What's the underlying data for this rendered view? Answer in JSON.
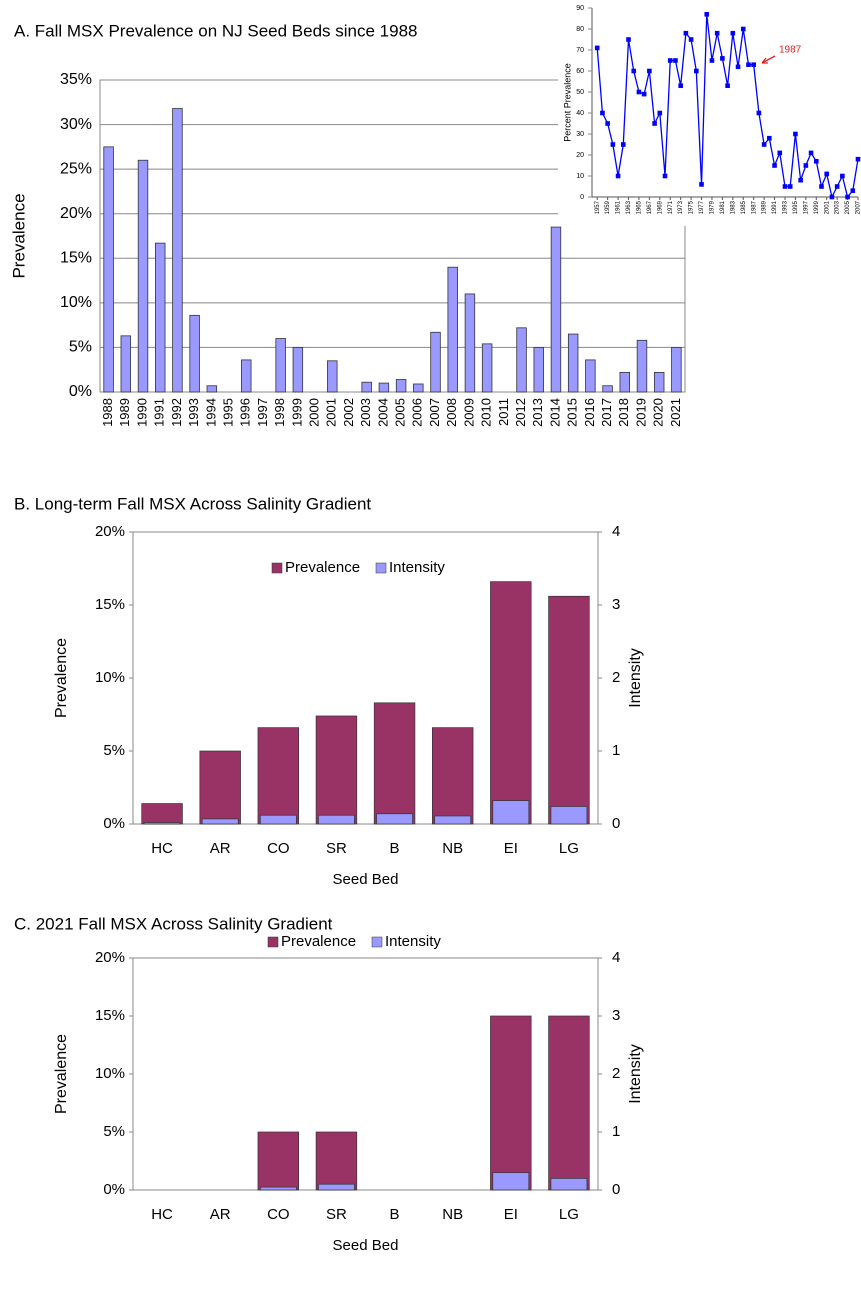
{
  "chart_data": [
    {
      "type": "bar",
      "title": "A. Fall MSX Prevalence on NJ Seed Beds since 1988",
      "ylabel": "Prevalence",
      "categories": [
        "1988",
        "1989",
        "1990",
        "1991",
        "1992",
        "1993",
        "1994",
        "1995",
        "1996",
        "1997",
        "1998",
        "1999",
        "2000",
        "2001",
        "2002",
        "2003",
        "2004",
        "2005",
        "2006",
        "2007",
        "2008",
        "2009",
        "2010",
        "2011",
        "2012",
        "2013",
        "2014",
        "2015",
        "2016",
        "2017",
        "2018",
        "2019",
        "2020",
        "2021"
      ],
      "values": [
        27.5,
        6.3,
        26,
        16.7,
        31.8,
        8.6,
        0.7,
        0,
        3.6,
        0,
        6,
        5,
        0,
        3.5,
        0,
        1.1,
        1,
        1.4,
        0.9,
        6.7,
        14,
        11,
        5.4,
        0,
        7.2,
        5,
        18.5,
        6.5,
        3.6,
        0.7,
        2.2,
        5.8,
        2.2,
        5
      ],
      "color": "#9999ff",
      "grid": true,
      "ylim": [
        0,
        35
      ],
      "yticks": [
        {
          "value": 0,
          "label": "0%"
        },
        {
          "value": 5,
          "label": "5%"
        },
        {
          "value": 10,
          "label": "10%"
        },
        {
          "value": 15,
          "label": "15%"
        },
        {
          "value": 20,
          "label": "20%"
        },
        {
          "value": 25,
          "label": "25%"
        },
        {
          "value": 30,
          "label": "30%"
        },
        {
          "value": 35,
          "label": "35%"
        }
      ]
    },
    {
      "type": "line",
      "ylabel": "Percent Prevalence",
      "annotation": "1987",
      "color": "#0000ff",
      "x": [
        1957,
        1958,
        1959,
        1960,
        1961,
        1962,
        1963,
        1964,
        1965,
        1966,
        1967,
        1968,
        1969,
        1970,
        1971,
        1972,
        1973,
        1974,
        1975,
        1976,
        1977,
        1978,
        1979,
        1980,
        1981,
        1982,
        1983,
        1984,
        1985,
        1986,
        1987,
        1988,
        1989,
        1990,
        1991,
        1992,
        1993,
        1994,
        1995,
        1996,
        1997,
        1998,
        1999,
        2000,
        2001,
        2002,
        2003,
        2004,
        2005,
        2006,
        2007
      ],
      "values": [
        71,
        40,
        35,
        25,
        10,
        25,
        75,
        60,
        50,
        49,
        60,
        35,
        40,
        10,
        65,
        65,
        53,
        78,
        75,
        60,
        6,
        87,
        65,
        78,
        66,
        53,
        78,
        62,
        80,
        63,
        63,
        40,
        25,
        28,
        15,
        21,
        5,
        5,
        30,
        8,
        15,
        21,
        17,
        5,
        11,
        0,
        5,
        10,
        0,
        3,
        18
      ],
      "xlim": [
        1956,
        2007
      ],
      "ylim": [
        0,
        90
      ],
      "xticks": [
        1957,
        1959,
        1961,
        1963,
        1965,
        1967,
        1969,
        1971,
        1973,
        1975,
        1977,
        1979,
        1981,
        1983,
        1985,
        1987,
        1989,
        1991,
        1993,
        1995,
        1997,
        1999,
        2001,
        2003,
        2005,
        2007
      ],
      "yticks": [
        0,
        10,
        20,
        30,
        40,
        50,
        60,
        70,
        80,
        90
      ]
    },
    {
      "type": "grouped-bar",
      "title": "B. Long-term Fall MSX Across Salinity Gradient",
      "xlabel": "Seed Bed",
      "ylabel": "Prevalence",
      "y2label": "Intensity",
      "categories": [
        "HC",
        "AR",
        "CO",
        "SR",
        "B",
        "NB",
        "EI",
        "LG"
      ],
      "series": [
        {
          "name": "Prevalence",
          "color": "#993366",
          "values": [
            1.4,
            5,
            6.6,
            7.4,
            8.3,
            6.6,
            16.6,
            15.6
          ]
        },
        {
          "name": "Intensity",
          "color": "#9999ff",
          "axis": "y2",
          "values": [
            0.02,
            0.07,
            0.12,
            0.12,
            0.14,
            0.11,
            0.32,
            0.24
          ]
        }
      ],
      "ylim": [
        0,
        20
      ],
      "yticks": [
        {
          "value": 0,
          "label": "0%"
        },
        {
          "value": 5,
          "label": "5%"
        },
        {
          "value": 10,
          "label": "10%"
        },
        {
          "value": 15,
          "label": "15%"
        },
        {
          "value": 20,
          "label": "20%"
        }
      ],
      "y2lim": [
        0,
        4
      ],
      "y2ticks": [
        0,
        1,
        2,
        3,
        4
      ]
    },
    {
      "type": "grouped-bar",
      "title": "C. 2021 Fall MSX Across Salinity Gradient",
      "xlabel": "Seed Bed",
      "ylabel": "Prevalence",
      "y2label": "Intensity",
      "categories": [
        "HC",
        "AR",
        "CO",
        "SR",
        "B",
        "NB",
        "EI",
        "LG"
      ],
      "series": [
        {
          "name": "Prevalence",
          "color": "#993366",
          "values": [
            0,
            0,
            5,
            5,
            0,
            0,
            15,
            15
          ]
        },
        {
          "name": "Intensity",
          "color": "#9999ff",
          "axis": "y2",
          "values": [
            0,
            0,
            0.05,
            0.1,
            0,
            0,
            0.3,
            0.2
          ]
        }
      ],
      "ylim": [
        0,
        20
      ],
      "yticks": [
        {
          "value": 0,
          "label": "0%"
        },
        {
          "value": 5,
          "label": "5%"
        },
        {
          "value": 10,
          "label": "10%"
        },
        {
          "value": 15,
          "label": "15%"
        },
        {
          "value": 20,
          "label": "20%"
        }
      ],
      "y2lim": [
        0,
        4
      ],
      "y2ticks": [
        0,
        1,
        2,
        3,
        4
      ]
    }
  ]
}
